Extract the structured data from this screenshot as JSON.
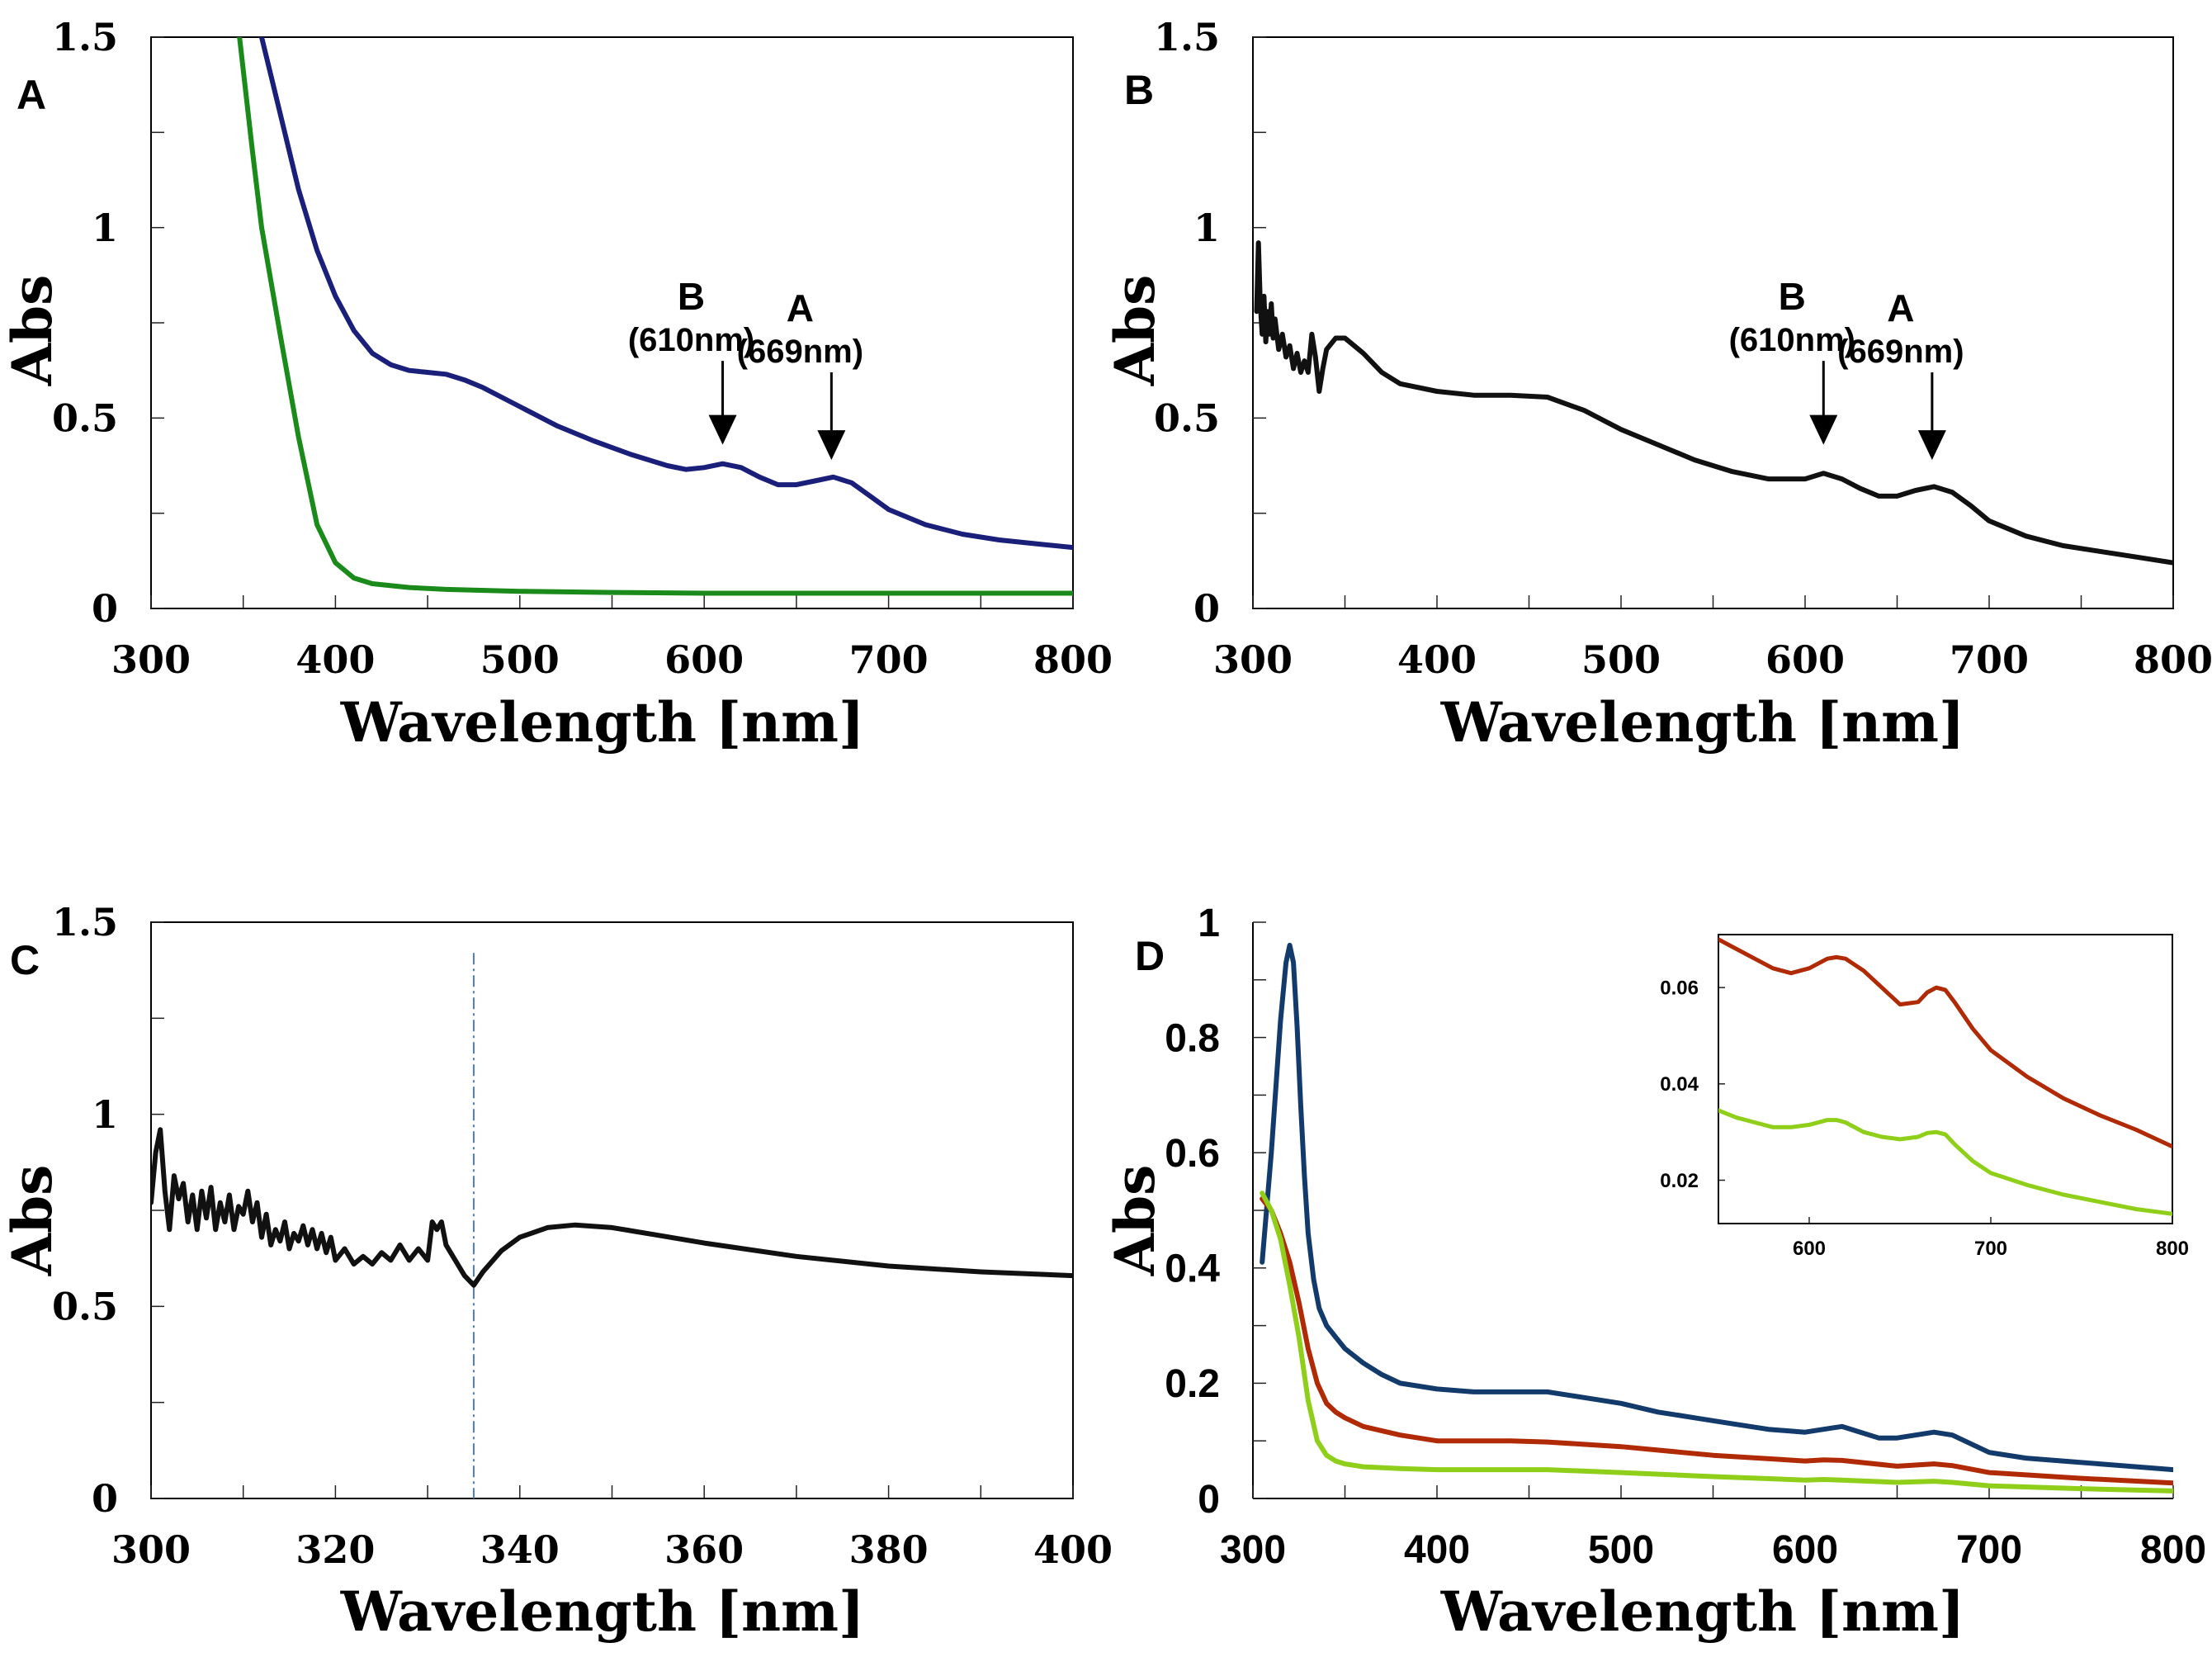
{
  "figure": {
    "colors": {
      "axis": "#000000",
      "tick": "#222222",
      "marker_line": "#4a7fc0"
    }
  },
  "chart_data": [
    {
      "id": "A",
      "panel_label": "A",
      "type": "line",
      "xlabel": "Wavelength [nm]",
      "ylabel": "Abs",
      "xlim": [
        300,
        800
      ],
      "ylim": [
        0,
        1.5
      ],
      "xticks": [
        300,
        400,
        500,
        600,
        700,
        800
      ],
      "xtick_labels": [
        "300",
        "400",
        "500",
        "600",
        "700",
        "800"
      ],
      "yticks": [
        0,
        0.5,
        1,
        1.5
      ],
      "ytick_labels": [
        "0",
        "0.5",
        "1",
        "1.5"
      ],
      "x_minor_step": 50,
      "y_minor_step": 0.25,
      "series": [
        {
          "name": "blue",
          "color": "#1a1f7a",
          "x": [
            360,
            370,
            380,
            390,
            400,
            410,
            420,
            430,
            440,
            450,
            460,
            470,
            480,
            490,
            500,
            520,
            540,
            560,
            580,
            590,
            600,
            610,
            620,
            630,
            640,
            650,
            660,
            670,
            680,
            690,
            700,
            720,
            740,
            760,
            780,
            800
          ],
          "y": [
            1.5,
            1.3,
            1.1,
            0.94,
            0.82,
            0.73,
            0.67,
            0.64,
            0.625,
            0.62,
            0.615,
            0.6,
            0.58,
            0.555,
            0.53,
            0.48,
            0.44,
            0.405,
            0.375,
            0.365,
            0.37,
            0.38,
            0.37,
            0.345,
            0.325,
            0.325,
            0.335,
            0.345,
            0.33,
            0.295,
            0.26,
            0.22,
            0.195,
            0.18,
            0.17,
            0.16
          ]
        },
        {
          "name": "green",
          "color": "#1a8a1a",
          "x": [
            348,
            355,
            360,
            370,
            380,
            390,
            400,
            410,
            420,
            440,
            460,
            500,
            550,
            600,
            650,
            700,
            800
          ],
          "y": [
            1.5,
            1.2,
            1.0,
            0.72,
            0.45,
            0.22,
            0.12,
            0.08,
            0.065,
            0.055,
            0.05,
            0.045,
            0.042,
            0.04,
            0.04,
            0.04,
            0.04
          ]
        }
      ],
      "annotations": [
        {
          "peak": "B",
          "wavelength": "(610nm)",
          "x": 610,
          "y_tip": 0.43,
          "y_tail": 0.65
        },
        {
          "peak": "A",
          "wavelength": "(669nm)",
          "x": 669,
          "y_tip": 0.39,
          "y_tail": 0.62
        }
      ]
    },
    {
      "id": "B",
      "panel_label": "B",
      "type": "line",
      "xlabel": "Wavelength [nm]",
      "ylabel": "Abs",
      "xlim": [
        300,
        800
      ],
      "ylim": [
        0,
        1.5
      ],
      "xticks": [
        300,
        400,
        500,
        600,
        700,
        800
      ],
      "xtick_labels": [
        "300",
        "400",
        "500",
        "600",
        "700",
        "800"
      ],
      "yticks": [
        0,
        0.5,
        1,
        1.5
      ],
      "ytick_labels": [
        "0",
        "0.5",
        "1",
        "1.5"
      ],
      "x_minor_step": 50,
      "y_minor_step": 0.25,
      "series": [
        {
          "name": "black",
          "color": "#111111",
          "x": [
            302,
            303,
            304,
            305,
            306,
            307,
            308,
            309,
            310,
            311,
            312,
            314,
            316,
            318,
            320,
            322,
            324,
            326,
            328,
            330,
            332,
            334,
            336,
            338,
            340,
            345,
            350,
            360,
            370,
            380,
            400,
            420,
            440,
            460,
            480,
            500,
            520,
            540,
            560,
            580,
            600,
            610,
            620,
            630,
            640,
            650,
            660,
            670,
            680,
            690,
            700,
            720,
            740,
            760,
            780,
            800
          ],
          "y": [
            0.78,
            0.96,
            0.8,
            0.72,
            0.82,
            0.7,
            0.78,
            0.72,
            0.8,
            0.71,
            0.76,
            0.68,
            0.72,
            0.66,
            0.69,
            0.63,
            0.67,
            0.62,
            0.65,
            0.62,
            0.72,
            0.66,
            0.57,
            0.63,
            0.68,
            0.71,
            0.71,
            0.67,
            0.62,
            0.59,
            0.57,
            0.56,
            0.56,
            0.555,
            0.52,
            0.47,
            0.43,
            0.39,
            0.36,
            0.34,
            0.34,
            0.355,
            0.34,
            0.315,
            0.295,
            0.295,
            0.31,
            0.32,
            0.305,
            0.27,
            0.23,
            0.19,
            0.165,
            0.15,
            0.135,
            0.12
          ]
        }
      ],
      "annotations": [
        {
          "peak": "B",
          "wavelength": "(610nm)",
          "x": 610,
          "y_tip": 0.43,
          "y_tail": 0.65
        },
        {
          "peak": "A",
          "wavelength": "(669nm)",
          "x": 669,
          "y_tip": 0.39,
          "y_tail": 0.62
        }
      ]
    },
    {
      "id": "C",
      "panel_label": "C",
      "type": "line",
      "xlabel": "Wavelength [nm]",
      "ylabel": "Abs",
      "xlim": [
        300,
        400
      ],
      "ylim": [
        0,
        1.5
      ],
      "xticks": [
        300,
        320,
        340,
        360,
        380,
        400
      ],
      "xtick_labels": [
        "300",
        "320",
        "340",
        "360",
        "380",
        "400"
      ],
      "yticks": [
        0,
        0.5,
        1,
        1.5
      ],
      "ytick_labels": [
        "0",
        "0.5",
        "1",
        "1.5"
      ],
      "x_minor_step": 10,
      "y_minor_step": 0.25,
      "vline_x": 335,
      "series": [
        {
          "name": "black",
          "color": "#111111",
          "x": [
            300,
            300.5,
            301,
            301.5,
            302,
            302.5,
            303,
            303.5,
            304,
            304.5,
            305,
            305.5,
            306,
            306.5,
            307,
            307.5,
            308,
            308.5,
            309,
            309.5,
            310,
            310.5,
            311,
            311.5,
            312,
            312.5,
            313,
            313.5,
            314,
            314.5,
            315,
            315.5,
            316,
            316.5,
            317,
            317.5,
            318,
            318.5,
            319,
            319.5,
            320,
            321,
            322,
            323,
            324,
            325,
            326,
            327,
            328,
            329,
            330,
            330.5,
            331,
            331.5,
            332,
            333,
            334,
            335,
            336,
            338,
            340,
            343,
            346,
            350,
            355,
            360,
            370,
            380,
            390,
            400
          ],
          "y": [
            0.77,
            0.9,
            0.96,
            0.8,
            0.7,
            0.84,
            0.78,
            0.82,
            0.72,
            0.79,
            0.7,
            0.8,
            0.73,
            0.81,
            0.7,
            0.77,
            0.72,
            0.79,
            0.7,
            0.76,
            0.74,
            0.8,
            0.72,
            0.77,
            0.68,
            0.74,
            0.66,
            0.7,
            0.67,
            0.72,
            0.65,
            0.69,
            0.67,
            0.71,
            0.66,
            0.7,
            0.65,
            0.69,
            0.64,
            0.68,
            0.62,
            0.65,
            0.61,
            0.63,
            0.61,
            0.64,
            0.62,
            0.66,
            0.62,
            0.65,
            0.62,
            0.72,
            0.7,
            0.72,
            0.66,
            0.62,
            0.58,
            0.555,
            0.59,
            0.645,
            0.68,
            0.705,
            0.712,
            0.705,
            0.685,
            0.665,
            0.63,
            0.605,
            0.59,
            0.58
          ]
        }
      ],
      "annotations": []
    },
    {
      "id": "D",
      "panel_label": "D",
      "type": "line",
      "xlabel": "Wavelength [nm]",
      "ylabel": "Abs",
      "xlim": [
        300,
        800
      ],
      "ylim": [
        0,
        1
      ],
      "xticks": [
        300,
        400,
        500,
        600,
        700,
        800
      ],
      "xtick_labels": [
        "300",
        "400",
        "500",
        "600",
        "700",
        "800"
      ],
      "yticks": [
        0,
        0.2,
        0.4,
        0.6,
        0.8,
        1
      ],
      "ytick_labels": [
        "0",
        "0.2",
        "0.4",
        "0.6",
        "0.8",
        "1"
      ],
      "x_minor_step": 50,
      "y_minor_step": 0.1,
      "series": [
        {
          "name": "dark blue",
          "color": "#123a6b",
          "x": [
            305,
            310,
            315,
            318,
            320,
            322,
            324,
            326,
            328,
            330,
            333,
            336,
            340,
            345,
            350,
            360,
            370,
            380,
            400,
            420,
            440,
            460,
            480,
            500,
            520,
            540,
            560,
            580,
            600,
            610,
            620,
            630,
            640,
            650,
            660,
            670,
            680,
            690,
            700,
            720,
            740,
            760,
            780,
            800
          ],
          "y": [
            0.41,
            0.6,
            0.83,
            0.93,
            0.96,
            0.93,
            0.82,
            0.68,
            0.56,
            0.46,
            0.38,
            0.33,
            0.3,
            0.28,
            0.26,
            0.235,
            0.215,
            0.2,
            0.19,
            0.185,
            0.185,
            0.185,
            0.175,
            0.165,
            0.15,
            0.14,
            0.13,
            0.12,
            0.115,
            0.12,
            0.125,
            0.115,
            0.105,
            0.105,
            0.11,
            0.115,
            0.11,
            0.095,
            0.08,
            0.07,
            0.065,
            0.06,
            0.055,
            0.05
          ]
        },
        {
          "name": "red",
          "color": "#b02a05",
          "x": [
            305,
            310,
            315,
            320,
            325,
            330,
            335,
            340,
            345,
            350,
            360,
            380,
            400,
            440,
            460,
            500,
            550,
            600,
            610,
            620,
            650,
            670,
            680,
            700,
            750,
            800
          ],
          "y": [
            0.52,
            0.5,
            0.46,
            0.41,
            0.34,
            0.26,
            0.2,
            0.165,
            0.15,
            0.14,
            0.125,
            0.11,
            0.1,
            0.1,
            0.098,
            0.09,
            0.075,
            0.065,
            0.067,
            0.066,
            0.056,
            0.06,
            0.057,
            0.045,
            0.035,
            0.027
          ]
        },
        {
          "name": "light green",
          "color": "#8fcf1a",
          "x": [
            305,
            310,
            315,
            320,
            325,
            330,
            335,
            340,
            345,
            350,
            360,
            380,
            400,
            440,
            460,
            500,
            550,
            600,
            610,
            620,
            650,
            670,
            680,
            700,
            750,
            800
          ],
          "y": [
            0.53,
            0.5,
            0.45,
            0.37,
            0.28,
            0.17,
            0.1,
            0.075,
            0.065,
            0.06,
            0.055,
            0.052,
            0.05,
            0.05,
            0.05,
            0.045,
            0.038,
            0.032,
            0.033,
            0.032,
            0.028,
            0.03,
            0.028,
            0.022,
            0.017,
            0.013
          ]
        }
      ],
      "annotations": []
    },
    {
      "id": "D-inset",
      "type": "line",
      "xlim": [
        550,
        800
      ],
      "ylim": [
        0.011,
        0.071
      ],
      "xticks": [
        600,
        700,
        800
      ],
      "xtick_labels": [
        "600",
        "700",
        "800"
      ],
      "yticks": [
        0.02,
        0.04,
        0.06
      ],
      "ytick_labels": [
        "0.02",
        "0.04",
        "0.06"
      ],
      "series": [
        {
          "name": "red",
          "color": "#b02a05",
          "x": [
            550,
            560,
            570,
            580,
            590,
            600,
            610,
            615,
            620,
            630,
            640,
            650,
            660,
            665,
            670,
            675,
            680,
            690,
            700,
            720,
            740,
            760,
            780,
            800
          ],
          "y": [
            0.07,
            0.068,
            0.066,
            0.064,
            0.063,
            0.064,
            0.066,
            0.0663,
            0.066,
            0.0635,
            0.06,
            0.0565,
            0.057,
            0.059,
            0.06,
            0.0595,
            0.057,
            0.0515,
            0.047,
            0.0415,
            0.037,
            0.0335,
            0.0305,
            0.027
          ]
        },
        {
          "name": "light green",
          "color": "#8fcf1a",
          "x": [
            550,
            560,
            570,
            580,
            590,
            600,
            610,
            615,
            620,
            630,
            640,
            650,
            660,
            665,
            670,
            675,
            680,
            690,
            700,
            720,
            740,
            760,
            780,
            800
          ],
          "y": [
            0.0345,
            0.033,
            0.032,
            0.031,
            0.031,
            0.0315,
            0.0325,
            0.0325,
            0.032,
            0.03,
            0.029,
            0.0285,
            0.029,
            0.0298,
            0.03,
            0.0295,
            0.0275,
            0.024,
            0.0215,
            0.019,
            0.017,
            0.0155,
            0.014,
            0.013
          ]
        }
      ]
    }
  ]
}
